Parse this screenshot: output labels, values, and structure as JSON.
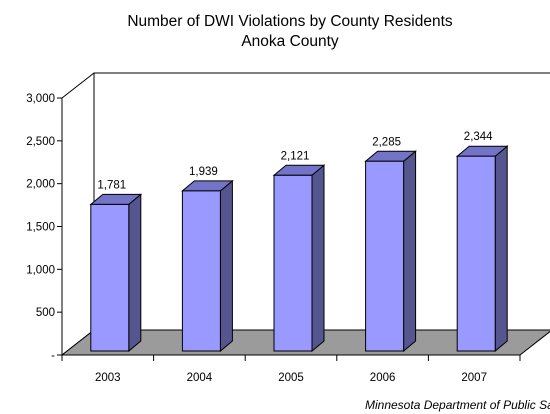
{
  "chart_data": {
    "type": "bar",
    "title": "Number of DWI Violations by County Residents",
    "subtitle": "Anoka County",
    "categories": [
      "2003",
      "2004",
      "2005",
      "2006",
      "2007"
    ],
    "series": [
      {
        "values": [
          1781,
          1939,
          2121,
          2285,
          2344
        ]
      }
    ],
    "data_labels": [
      "1,781",
      "1,939",
      "2,121",
      "2,285",
      "2,344"
    ],
    "y_ticks": [
      0,
      500,
      1000,
      1500,
      2000,
      2500,
      3000
    ],
    "y_tick_labels": [
      "-",
      "500",
      "1,000",
      "1,500",
      "2,000",
      "2,500",
      "3,000"
    ],
    "ylim": [
      0,
      3000
    ],
    "grid": false,
    "legend": "none",
    "three_d": true,
    "xlabel": "",
    "ylabel": ""
  },
  "source_note": "Minnesota Department of Public Safety",
  "colors": {
    "bar_front": "#9999ff",
    "bar_side": "#555590",
    "bar_top": "#7373c8",
    "floor": "#9b9b9b",
    "axis": "#000000",
    "background": "#ffffff"
  }
}
